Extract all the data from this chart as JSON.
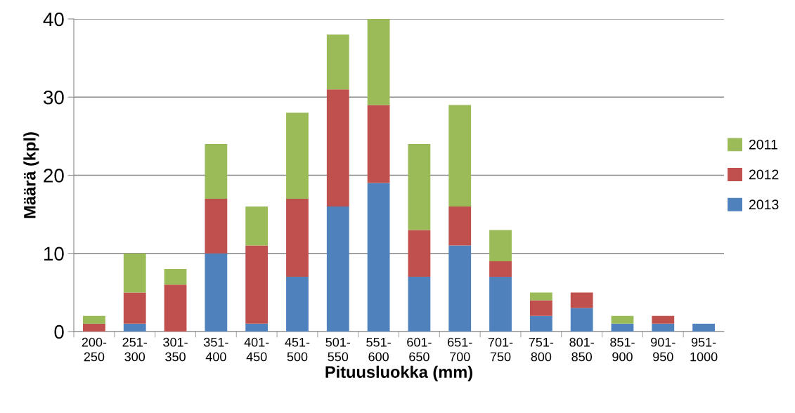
{
  "chart_data": {
    "type": "bar",
    "stacked": true,
    "xlabel": "Pituusluokka (mm)",
    "ylabel": "Määrä (kpl)",
    "categories": [
      "200-250",
      "251-300",
      "301-350",
      "351-400",
      "401-450",
      "451-500",
      "501-550",
      "551-600",
      "601-650",
      "651-700",
      "701-750",
      "751-800",
      "801-850",
      "851-900",
      "901-950",
      "951-1000"
    ],
    "series": [
      {
        "name": "2013",
        "color": "#4f81bd",
        "values": [
          0,
          1,
          0,
          10,
          1,
          7,
          16,
          19,
          7,
          11,
          7,
          2,
          3,
          1,
          1,
          1
        ]
      },
      {
        "name": "2012",
        "color": "#c0504d",
        "values": [
          1,
          4,
          6,
          7,
          10,
          10,
          15,
          10,
          6,
          5,
          2,
          2,
          2,
          0,
          1,
          0
        ]
      },
      {
        "name": "2011",
        "color": "#9bbb59",
        "values": [
          1,
          5,
          2,
          7,
          5,
          11,
          7,
          11,
          11,
          13,
          4,
          1,
          0,
          1,
          0,
          0
        ]
      }
    ],
    "ylim": [
      0,
      40
    ],
    "yticks": [
      0,
      10,
      20,
      30,
      40
    ],
    "grid": "y",
    "legend": "right"
  }
}
